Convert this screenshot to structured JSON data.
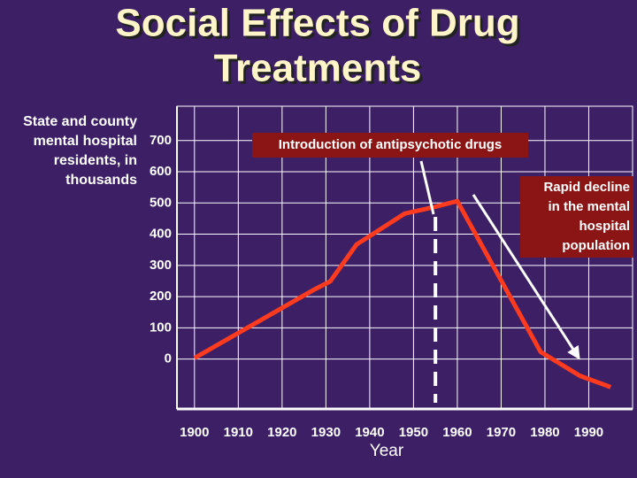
{
  "chart_data": {
    "type": "line",
    "title": [
      "Social Effects of Drug",
      "Treatments"
    ],
    "y_label": [
      "State and county",
      "mental hospital",
      "residents, in",
      "thousands"
    ],
    "x_label": "Year",
    "x": [
      1900,
      1927,
      1931,
      1937,
      1948,
      1955,
      1960,
      1979,
      1988,
      1995
    ],
    "series": [
      {
        "name": "State and county mental hospital residents",
        "color": "#ff3b1f",
        "values": [
          3,
          220,
          249,
          367,
          466,
          488,
          506,
          23,
          -54,
          -90
        ]
      }
    ],
    "xlim": [
      1896,
      2000
    ],
    "xticks": [
      1900,
      1910,
      1920,
      1930,
      1940,
      1950,
      1960,
      1970,
      1980,
      1990
    ],
    "ylim": [
      -160,
      810
    ],
    "yticks": [
      0,
      100,
      200,
      300,
      400,
      500,
      600,
      700
    ],
    "grid": true,
    "annotations": [
      {
        "text": "Introduction of antipsychotic drugs",
        "x": 1955
      },
      {
        "text": [
          "Rapid decline",
          "in the mental",
          "hospital",
          "population"
        ]
      }
    ]
  }
}
